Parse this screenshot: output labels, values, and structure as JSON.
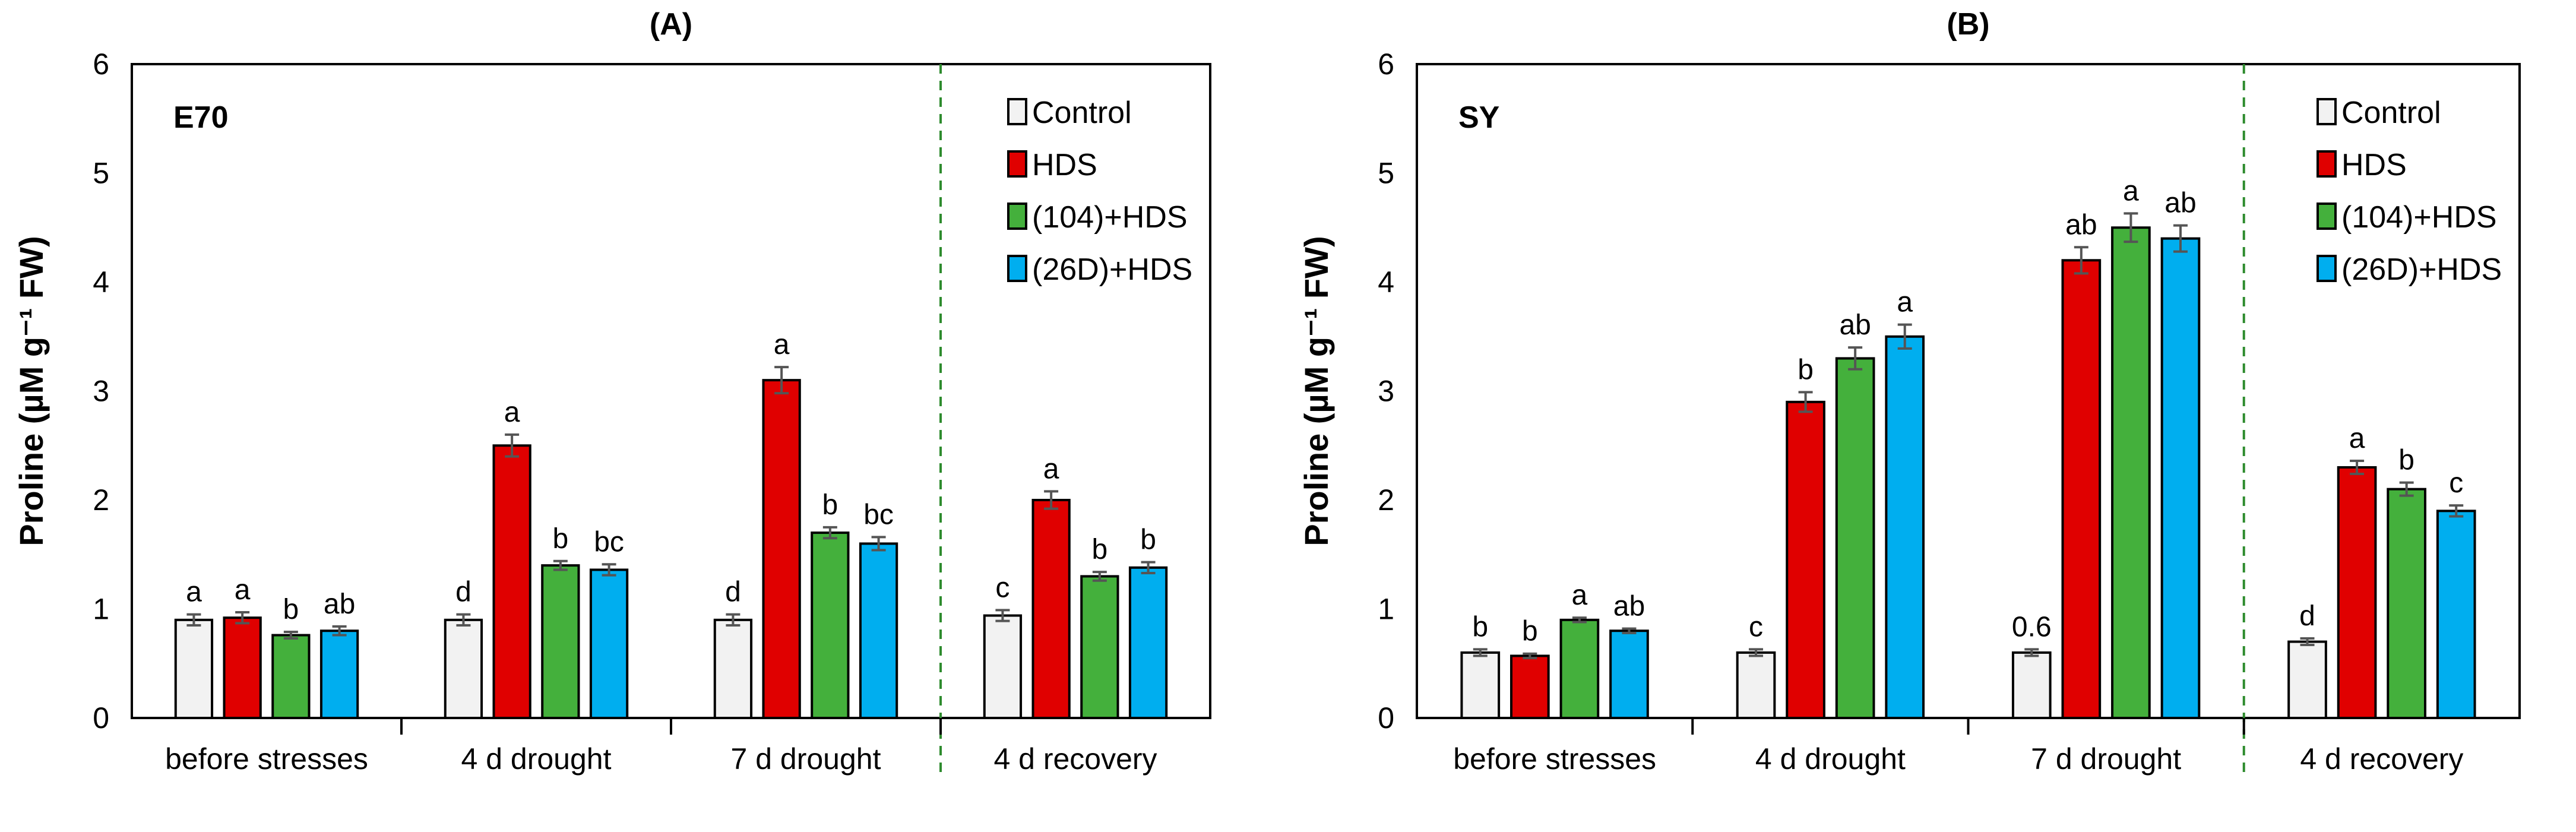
{
  "chart_data": [
    {
      "type": "bar",
      "title": "(A)",
      "cultivar": "E70",
      "ylabel": "Proline (µM g⁻¹ FW)",
      "ylim": [
        0,
        6
      ],
      "yticks": [
        "0",
        "1",
        "2",
        "3",
        "4",
        "5",
        "6"
      ],
      "categories": [
        "before stresses",
        "4 d drought",
        "7 d drought",
        "4 d recovery"
      ],
      "legend_position": "top-right",
      "series": [
        {
          "name": "Control",
          "color": "#f2f2f2",
          "values": [
            0.9,
            0.9,
            0.9,
            0.94
          ],
          "errors": [
            0.05,
            0.05,
            0.05,
            0.05
          ],
          "letters": [
            "a",
            "d",
            "d",
            "c"
          ]
        },
        {
          "name": "HDS",
          "color": "#e00000",
          "values": [
            0.92,
            2.5,
            3.1,
            2.0
          ],
          "errors": [
            0.05,
            0.1,
            0.12,
            0.08
          ],
          "letters": [
            "a",
            "a",
            "a",
            "a"
          ]
        },
        {
          "name": "(104)+HDS",
          "color": "#44b03c",
          "values": [
            0.76,
            1.4,
            1.7,
            1.3
          ],
          "errors": [
            0.03,
            0.04,
            0.05,
            0.04
          ],
          "letters": [
            "b",
            "b",
            "b",
            "b"
          ]
        },
        {
          "name": "(26D)+HDS",
          "color": "#00aeef",
          "values": [
            0.8,
            1.36,
            1.6,
            1.38
          ],
          "errors": [
            0.04,
            0.05,
            0.06,
            0.05
          ],
          "letters": [
            "ab",
            "bc",
            "bc",
            "b"
          ]
        }
      ]
    },
    {
      "type": "bar",
      "title": "(B)",
      "cultivar": "SY",
      "ylabel": "Proline (µM g⁻¹ FW)",
      "ylim": [
        0,
        6
      ],
      "yticks": [
        "0",
        "1",
        "2",
        "3",
        "4",
        "5",
        "6"
      ],
      "categories": [
        "before stresses",
        "4 d drought",
        "7 d drought",
        "4 d recovery"
      ],
      "legend_position": "top-right",
      "series": [
        {
          "name": "Control",
          "color": "#f2f2f2",
          "values": [
            0.6,
            0.6,
            0.6,
            0.7
          ],
          "errors": [
            0.03,
            0.03,
            0.03,
            0.03
          ],
          "letters": [
            "b",
            "c",
            "0.6",
            "d"
          ]
        },
        {
          "name": "HDS",
          "color": "#e00000",
          "values": [
            0.57,
            2.9,
            4.2,
            2.3
          ],
          "errors": [
            0.02,
            0.09,
            0.12,
            0.06
          ],
          "letters": [
            "b",
            "b",
            "ab",
            "a"
          ]
        },
        {
          "name": "(104)+HDS",
          "color": "#44b03c",
          "values": [
            0.9,
            3.3,
            4.5,
            2.1
          ],
          "errors": [
            0.02,
            0.1,
            0.13,
            0.06
          ],
          "letters": [
            "a",
            "ab",
            "a",
            "b"
          ]
        },
        {
          "name": "(26D)+HDS",
          "color": "#00aeef",
          "values": [
            0.8,
            3.5,
            4.4,
            1.9
          ],
          "errors": [
            0.02,
            0.11,
            0.12,
            0.05
          ],
          "letters": [
            "ab",
            "a",
            "ab",
            "c"
          ]
        }
      ]
    }
  ]
}
